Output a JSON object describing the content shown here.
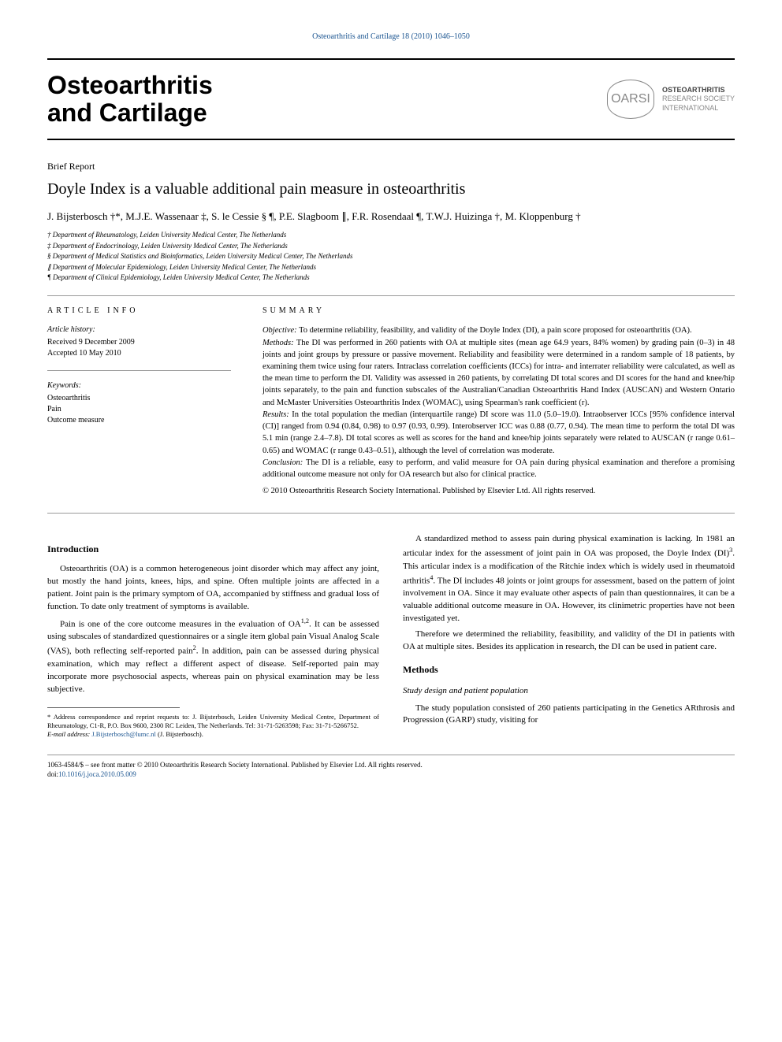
{
  "journal_header": "Osteoarthritis and Cartilage 18 (2010) 1046–1050",
  "journal_title_1": "Osteoarthritis",
  "journal_title_2": "and Cartilage",
  "logo_abbrev": "OARSI",
  "logo_line1": "OSTEOARTHRITIS",
  "logo_line2": "RESEARCH SOCIETY",
  "logo_line3": "INTERNATIONAL",
  "article_type": "Brief Report",
  "article_title": "Doyle Index is a valuable additional pain measure in osteoarthritis",
  "authors": "J. Bijsterbosch †*, M.J.E. Wassenaar ‡, S. le Cessie § ¶, P.E. Slagboom ∥, F.R. Rosendaal ¶, T.W.J. Huizinga †, M. Kloppenburg †",
  "aff_1": "† Department of Rheumatology, Leiden University Medical Center, The Netherlands",
  "aff_2": "‡ Department of Endocrinology, Leiden University Medical Center, The Netherlands",
  "aff_3": "§ Department of Medical Statistics and Bioinformatics, Leiden University Medical Center, The Netherlands",
  "aff_4": "∥ Department of Molecular Epidemiology, Leiden University Medical Center, The Netherlands",
  "aff_5": "¶ Department of Clinical Epidemiology, Leiden University Medical Center, The Netherlands",
  "info_heading": "ARTICLE INFO",
  "summary_heading": "SUMMARY",
  "history_label": "Article history:",
  "received": "Received 9 December 2009",
  "accepted": "Accepted 10 May 2010",
  "keywords_label": "Keywords:",
  "kw1": "Osteoarthritis",
  "kw2": "Pain",
  "kw3": "Outcome measure",
  "sum_objective_label": "Objective:",
  "sum_objective": " To determine reliability, feasibility, and validity of the Doyle Index (DI), a pain score proposed for osteoarthritis (OA).",
  "sum_methods_label": "Methods:",
  "sum_methods": " The DI was performed in 260 patients with OA at multiple sites (mean age 64.9 years, 84% women) by grading pain (0–3) in 48 joints and joint groups by pressure or passive movement. Reliability and feasibility were determined in a random sample of 18 patients, by examining them twice using four raters. Intraclass correlation coefficients (ICCs) for intra- and interrater reliability were calculated, as well as the mean time to perform the DI. Validity was assessed in 260 patients, by correlating DI total scores and DI scores for the hand and knee/hip joints separately, to the pain and function subscales of the Australian/Canadian Osteoarthritis Hand Index (AUSCAN) and Western Ontario and McMaster Universities Osteoarthritis Index (WOMAC), using Spearman's rank coefficient (r).",
  "sum_results_label": "Results:",
  "sum_results": " In the total population the median (interquartile range) DI score was 11.0 (5.0–19.0). Intraobserver ICCs [95% confidence interval (CI)] ranged from 0.94 (0.84, 0.98) to 0.97 (0.93, 0.99). Interobserver ICC was 0.88 (0.77, 0.94). The mean time to perform the total DI was 5.1 min (range 2.4–7.8). DI total scores as well as scores for the hand and knee/hip joints separately were related to AUSCAN (r range 0.61–0.65) and WOMAC (r range 0.43–0.51), although the level of correlation was moderate.",
  "sum_conclusion_label": "Conclusion:",
  "sum_conclusion": " The DI is a reliable, easy to perform, and valid measure for OA pain during physical examination and therefore a promising additional outcome measure not only for OA research but also for clinical practice.",
  "copyright": "© 2010 Osteoarthritis Research Society International. Published by Elsevier Ltd. All rights reserved.",
  "intro_head": "Introduction",
  "intro_p1": "Osteoarthritis (OA) is a common heterogeneous joint disorder which may affect any joint, but mostly the hand joints, knees, hips, and spine. Often multiple joints are affected in a patient. Joint pain is the primary symptom of OA, accompanied by stiffness and gradual loss of function. To date only treatment of symptoms is available.",
  "intro_p2_a": "Pain is one of the core outcome measures in the evaluation of OA",
  "intro_p2_sup1": "1,2",
  "intro_p2_b": ". It can be assessed using subscales of standardized questionnaires or a single item global pain Visual Analog Scale (VAS), both reflecting self-reported pain",
  "intro_p2_sup2": "2",
  "intro_p2_c": ". In addition, pain can be assessed during physical examination, which may reflect a different aspect of disease. Self-reported pain may incorporate more psychosocial aspects, whereas pain on physical examination may be less subjective.",
  "intro_p3_a": "A standardized method to assess pain during physical examination is lacking. In 1981 an articular index for the assessment of joint pain in OA was proposed, the Doyle Index (DI)",
  "intro_p3_sup1": "3",
  "intro_p3_b": ". This articular index is a modification of the Ritchie index which is widely used in rheumatoid arthritis",
  "intro_p3_sup2": "4",
  "intro_p3_c": ". The DI includes 48 joints or joint groups for assessment, based on the pattern of joint involvement in OA. Since it may evaluate other aspects of pain than questionnaires, it can be a valuable additional outcome measure in OA. However, its clinimetric properties have not been investigated yet.",
  "intro_p4": "Therefore we determined the reliability, feasibility, and validity of the DI in patients with OA at multiple sites. Besides its application in research, the DI can be used in patient care.",
  "methods_head": "Methods",
  "methods_sub1": "Study design and patient population",
  "methods_p1": "The study population consisted of 260 patients participating in the Genetics ARthrosis and Progression (GARP) study, visiting for",
  "fn_corr": "* Address correspondence and reprint requests to: J. Bijsterbosch, Leiden University Medical Centre, Department of Rheumatology, C1-R, P.O. Box 9600, 2300 RC Leiden, The Netherlands. Tel: 31-71-5263598; Fax: 31-71-5266752.",
  "fn_email_label": "E-mail address: ",
  "fn_email": "J.Bijsterbosch@lumc.nl",
  "fn_email_suffix": " (J. Bijsterbosch).",
  "footer_text": "1063-4584/$ – see front matter © 2010 Osteoarthritis Research Society International. Published by Elsevier Ltd. All rights reserved.",
  "doi_label": "doi:",
  "doi": "10.1016/j.joca.2010.05.009"
}
